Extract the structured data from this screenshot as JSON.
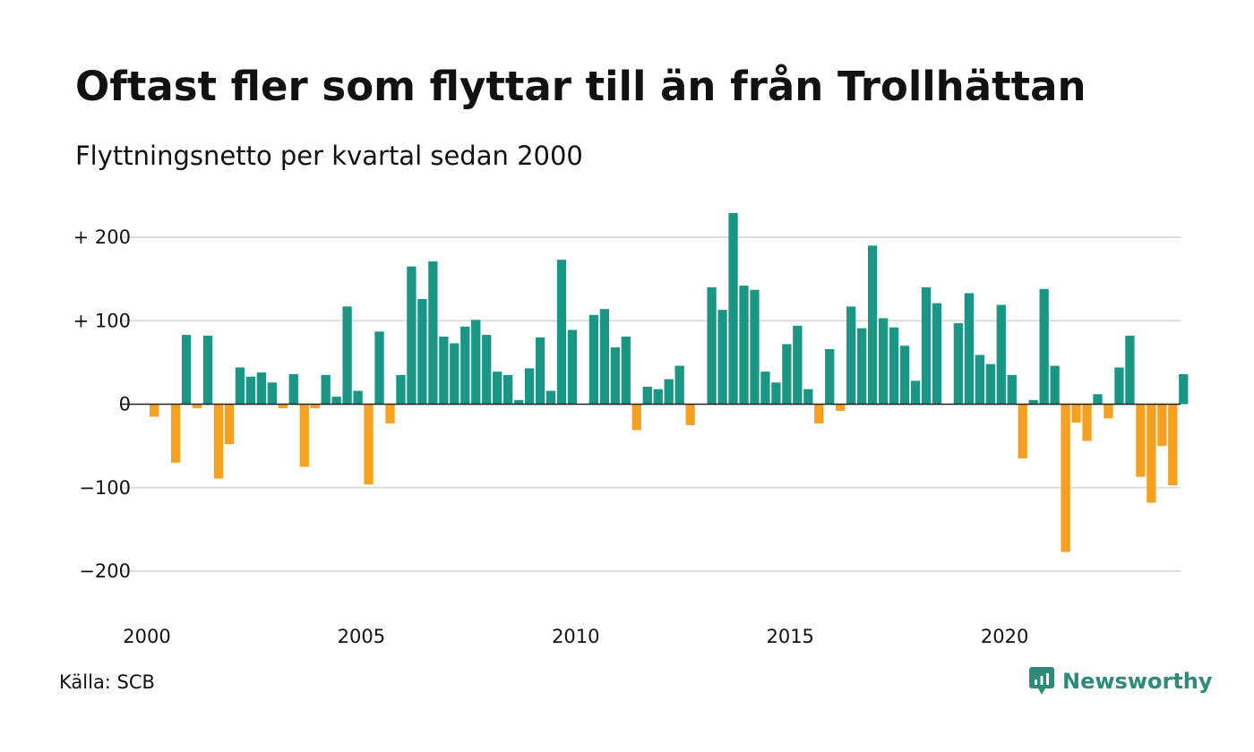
{
  "title": "Oftast fler som flyttar till än från Trollhättan",
  "subtitle": "Flyttningsnetto per kvartal sedan 2000",
  "source": "Källa: SCB",
  "brand": "Newsworthy",
  "colors": {
    "positive": "#1a9685",
    "negative": "#f6a01f",
    "grid": "#dddddd",
    "zero": "#222222"
  },
  "chart_data": {
    "type": "bar",
    "x_tick_labels": [
      "2000",
      "2005",
      "2010",
      "2015",
      "2020"
    ],
    "y_tick_labels": [
      "+ 200",
      "+ 100",
      "0",
      "−100",
      "−200"
    ],
    "ylim": [
      -200,
      200
    ],
    "grid": true,
    "categories": [
      "2000Q1",
      "2000Q2",
      "2000Q3",
      "2000Q4",
      "2001Q1",
      "2001Q2",
      "2001Q3",
      "2001Q4",
      "2002Q1",
      "2002Q2",
      "2002Q3",
      "2002Q4",
      "2003Q1",
      "2003Q2",
      "2003Q3",
      "2003Q4",
      "2004Q1",
      "2004Q2",
      "2004Q3",
      "2004Q4",
      "2005Q1",
      "2005Q2",
      "2005Q3",
      "2005Q4",
      "2006Q1",
      "2006Q2",
      "2006Q3",
      "2006Q4",
      "2007Q1",
      "2007Q2",
      "2007Q3",
      "2007Q4",
      "2008Q1",
      "2008Q2",
      "2008Q3",
      "2008Q4",
      "2009Q1",
      "2009Q2",
      "2009Q3",
      "2009Q4",
      "2010Q1",
      "2010Q2",
      "2010Q3",
      "2010Q4",
      "2011Q1",
      "2011Q2",
      "2011Q3",
      "2011Q4",
      "2012Q1",
      "2012Q2",
      "2012Q3",
      "2012Q4",
      "2013Q1",
      "2013Q2",
      "2013Q3",
      "2013Q4",
      "2014Q1",
      "2014Q2",
      "2014Q3",
      "2014Q4",
      "2015Q1",
      "2015Q2",
      "2015Q3",
      "2015Q4",
      "2016Q1",
      "2016Q2",
      "2016Q3",
      "2016Q4",
      "2017Q1",
      "2017Q2",
      "2017Q3",
      "2017Q4",
      "2018Q1",
      "2018Q2",
      "2018Q3",
      "2018Q4",
      "2019Q1",
      "2019Q2",
      "2019Q3",
      "2019Q4",
      "2020Q1",
      "2020Q2",
      "2020Q3",
      "2020Q4",
      "2021Q1",
      "2021Q2",
      "2021Q3",
      "2021Q4",
      "2022Q1",
      "2022Q2",
      "2022Q3",
      "2022Q4",
      "2023Q1",
      "2023Q2",
      "2023Q3",
      "2023Q4",
      "2024Q1"
    ],
    "values": [
      -15,
      0,
      -70,
      83,
      -5,
      82,
      -89,
      -48,
      44,
      33,
      38,
      26,
      -5,
      36,
      -75,
      -5,
      35,
      9,
      117,
      16,
      -96,
      87,
      -23,
      35,
      165,
      126,
      171,
      81,
      73,
      93,
      101,
      83,
      39,
      35,
      5,
      43,
      80,
      16,
      173,
      89,
      0,
      107,
      114,
      68,
      81,
      -31,
      21,
      18,
      30,
      46,
      -25,
      0,
      140,
      113,
      229,
      142,
      137,
      39,
      26,
      72,
      94,
      18,
      -23,
      66,
      -8,
      117,
      91,
      190,
      103,
      92,
      70,
      28,
      140,
      121,
      0,
      97,
      133,
      59,
      48,
      119,
      35,
      -65,
      5,
      138,
      46,
      -177,
      -22,
      -44,
      12,
      -17,
      44,
      82,
      -87,
      -118,
      -50,
      -97,
      36
    ]
  }
}
